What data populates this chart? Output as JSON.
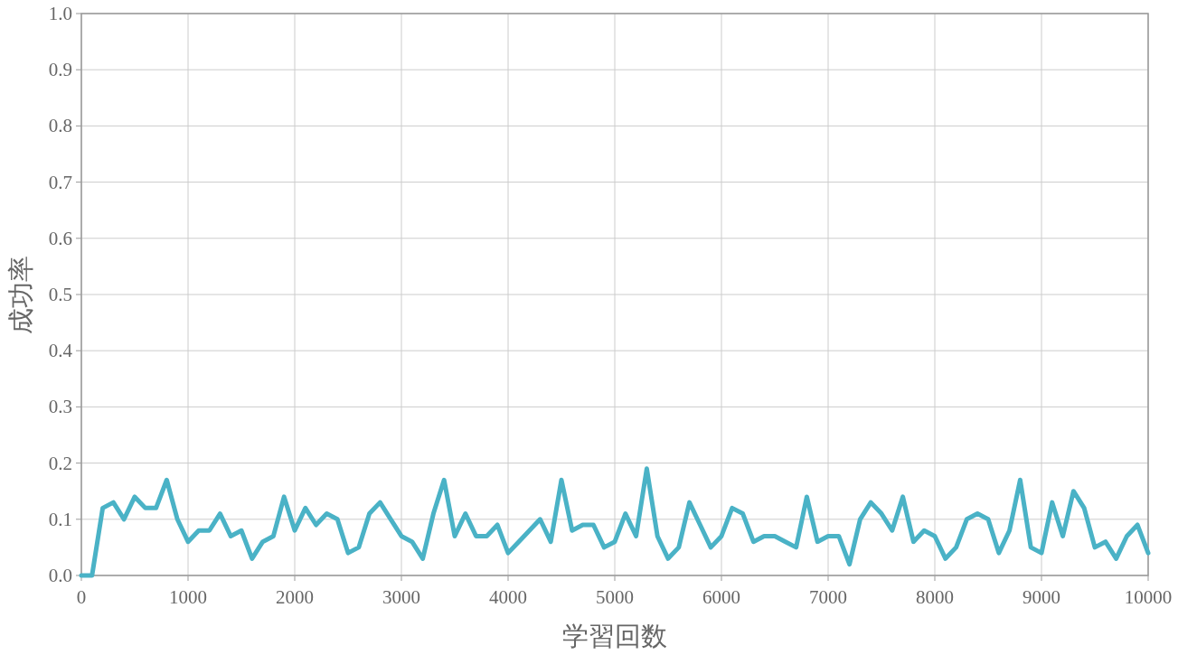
{
  "chart_data": {
    "type": "line",
    "xlabel": "学習回数",
    "ylabel": "成功率",
    "x": [
      0,
      100,
      200,
      300,
      400,
      500,
      600,
      700,
      800,
      900,
      1000,
      1100,
      1200,
      1300,
      1400,
      1500,
      1600,
      1700,
      1800,
      1900,
      2000,
      2100,
      2200,
      2300,
      2400,
      2500,
      2600,
      2700,
      2800,
      2900,
      3000,
      3100,
      3200,
      3300,
      3400,
      3500,
      3600,
      3700,
      3800,
      3900,
      4000,
      4100,
      4200,
      4300,
      4400,
      4500,
      4600,
      4700,
      4800,
      4900,
      5000,
      5100,
      5200,
      5300,
      5400,
      5500,
      5600,
      5700,
      5800,
      5900,
      6000,
      6100,
      6200,
      6300,
      6400,
      6500,
      6600,
      6700,
      6800,
      6900,
      7000,
      7100,
      7200,
      7300,
      7400,
      7500,
      7600,
      7700,
      7800,
      7900,
      8000,
      8100,
      8200,
      8300,
      8400,
      8500,
      8600,
      8700,
      8800,
      8900,
      9000,
      9100,
      9200,
      9300,
      9400,
      9500,
      9600,
      9700,
      9800,
      9900,
      10000
    ],
    "values": [
      0,
      0,
      0.12,
      0.13,
      0.1,
      0.14,
      0.12,
      0.12,
      0.17,
      0.1,
      0.06,
      0.08,
      0.08,
      0.11,
      0.07,
      0.08,
      0.03,
      0.06,
      0.07,
      0.14,
      0.08,
      0.12,
      0.09,
      0.11,
      0.1,
      0.04,
      0.05,
      0.11,
      0.13,
      0.1,
      0.07,
      0.06,
      0.03,
      0.11,
      0.17,
      0.07,
      0.11,
      0.07,
      0.07,
      0.09,
      0.04,
      0.06,
      0.08,
      0.1,
      0.06,
      0.17,
      0.08,
      0.09,
      0.09,
      0.05,
      0.06,
      0.11,
      0.07,
      0.19,
      0.07,
      0.03,
      0.05,
      0.13,
      0.09,
      0.05,
      0.07,
      0.12,
      0.11,
      0.06,
      0.07,
      0.07,
      0.06,
      0.05,
      0.14,
      0.06,
      0.07,
      0.07,
      0.02,
      0.1,
      0.13,
      0.11,
      0.08,
      0.14,
      0.06,
      0.08,
      0.07,
      0.03,
      0.05,
      0.1,
      0.11,
      0.1,
      0.04,
      0.08,
      0.17,
      0.05,
      0.04,
      0.13,
      0.07,
      0.15,
      0.12,
      0.05,
      0.06,
      0.03,
      0.07,
      0.09,
      0.04
    ],
    "color": "#4ab2c6",
    "xlim": [
      0,
      10000
    ],
    "ylim": [
      0,
      1
    ],
    "xticks": [
      0,
      1000,
      2000,
      3000,
      4000,
      5000,
      6000,
      7000,
      8000,
      9000,
      10000
    ],
    "yticks": [
      {
        "value": 0,
        "label": "0.0"
      },
      0.1,
      0.2,
      0.3,
      0.4,
      0.5,
      0.6,
      0.7,
      0.8,
      0.9,
      {
        "value": 1,
        "label": "1.0"
      }
    ],
    "grid": true
  }
}
